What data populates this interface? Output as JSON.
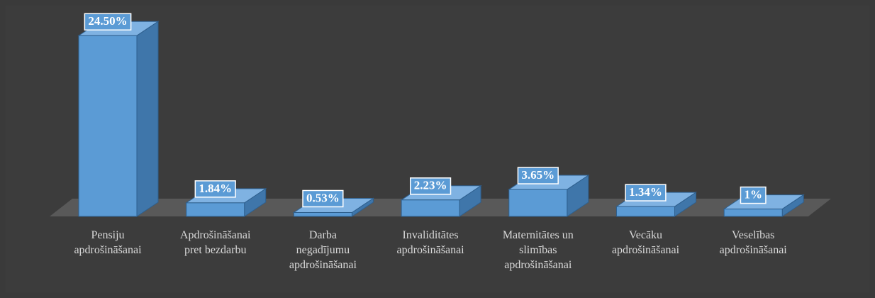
{
  "chart_data": {
    "type": "bar3d",
    "categories": [
      "Pensiju apdrošināšanai",
      "Apdrošināšanai pret bezdarbu",
      "Darba negadījumu apdrošināšanai",
      "Invaliditātes apdrošināšanai",
      "Maternitātes un slimības apdrošināšanai",
      "Vecāku apdrošināšanai",
      "Veselības apdrošināšanai"
    ],
    "values": [
      24.5,
      1.84,
      0.53,
      2.23,
      3.65,
      1.34,
      1
    ],
    "value_labels": [
      "24.50%",
      "1.84%",
      "0.53%",
      "2.23%",
      "3.65%",
      "1.34%",
      "1%"
    ],
    "color": "#5b9bd5"
  }
}
